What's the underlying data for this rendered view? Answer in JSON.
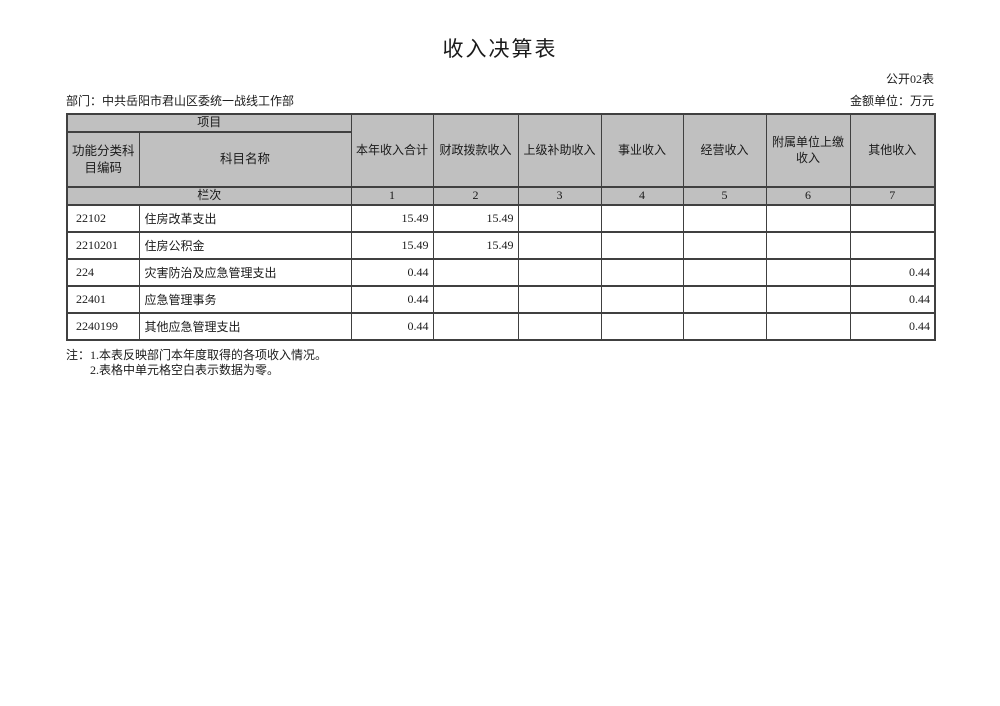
{
  "page": {
    "title": "收入决算表",
    "table_code": "公开02表",
    "department": "部门：中共岳阳市君山区委统一战线工作部",
    "unit": "金额单位：万元"
  },
  "colors": {
    "header_bg": "#c0c0c0",
    "border": "#404040",
    "text": "#1a1a1a",
    "page_bg": "#ffffff"
  },
  "table": {
    "project_header": "项目",
    "code_header": "功能分类科目编码",
    "name_header": "科目名称",
    "lane_header": "栏次",
    "income_columns": [
      {
        "label": "本年收入合计",
        "index": "1"
      },
      {
        "label": "财政拨款收入",
        "index": "2"
      },
      {
        "label": "上级补助收入",
        "index": "3"
      },
      {
        "label": "事业收入",
        "index": "4"
      },
      {
        "label": "经营收入",
        "index": "5"
      },
      {
        "label": "附属单位上缴收入",
        "index": "6"
      },
      {
        "label": "其他收入",
        "index": "7"
      }
    ],
    "rows": [
      {
        "code": "22102",
        "name": "住房改革支出",
        "values": [
          "15.49",
          "15.49",
          "",
          "",
          "",
          "",
          ""
        ]
      },
      {
        "code": "2210201",
        "name": "住房公积金",
        "values": [
          "15.49",
          "15.49",
          "",
          "",
          "",
          "",
          ""
        ]
      },
      {
        "code": "224",
        "name": "灾害防治及应急管理支出",
        "values": [
          "0.44",
          "",
          "",
          "",
          "",
          "",
          "0.44"
        ]
      },
      {
        "code": "22401",
        "name": "应急管理事务",
        "values": [
          "0.44",
          "",
          "",
          "",
          "",
          "",
          "0.44"
        ]
      },
      {
        "code": "2240199",
        "name": "其他应急管理支出",
        "values": [
          "0.44",
          "",
          "",
          "",
          "",
          "",
          "0.44"
        ]
      }
    ]
  },
  "notes": {
    "prefix": "注：",
    "line1": "1.本表反映部门本年度取得的各项收入情况。",
    "line2": "2.表格中单元格空白表示数据为零。"
  }
}
